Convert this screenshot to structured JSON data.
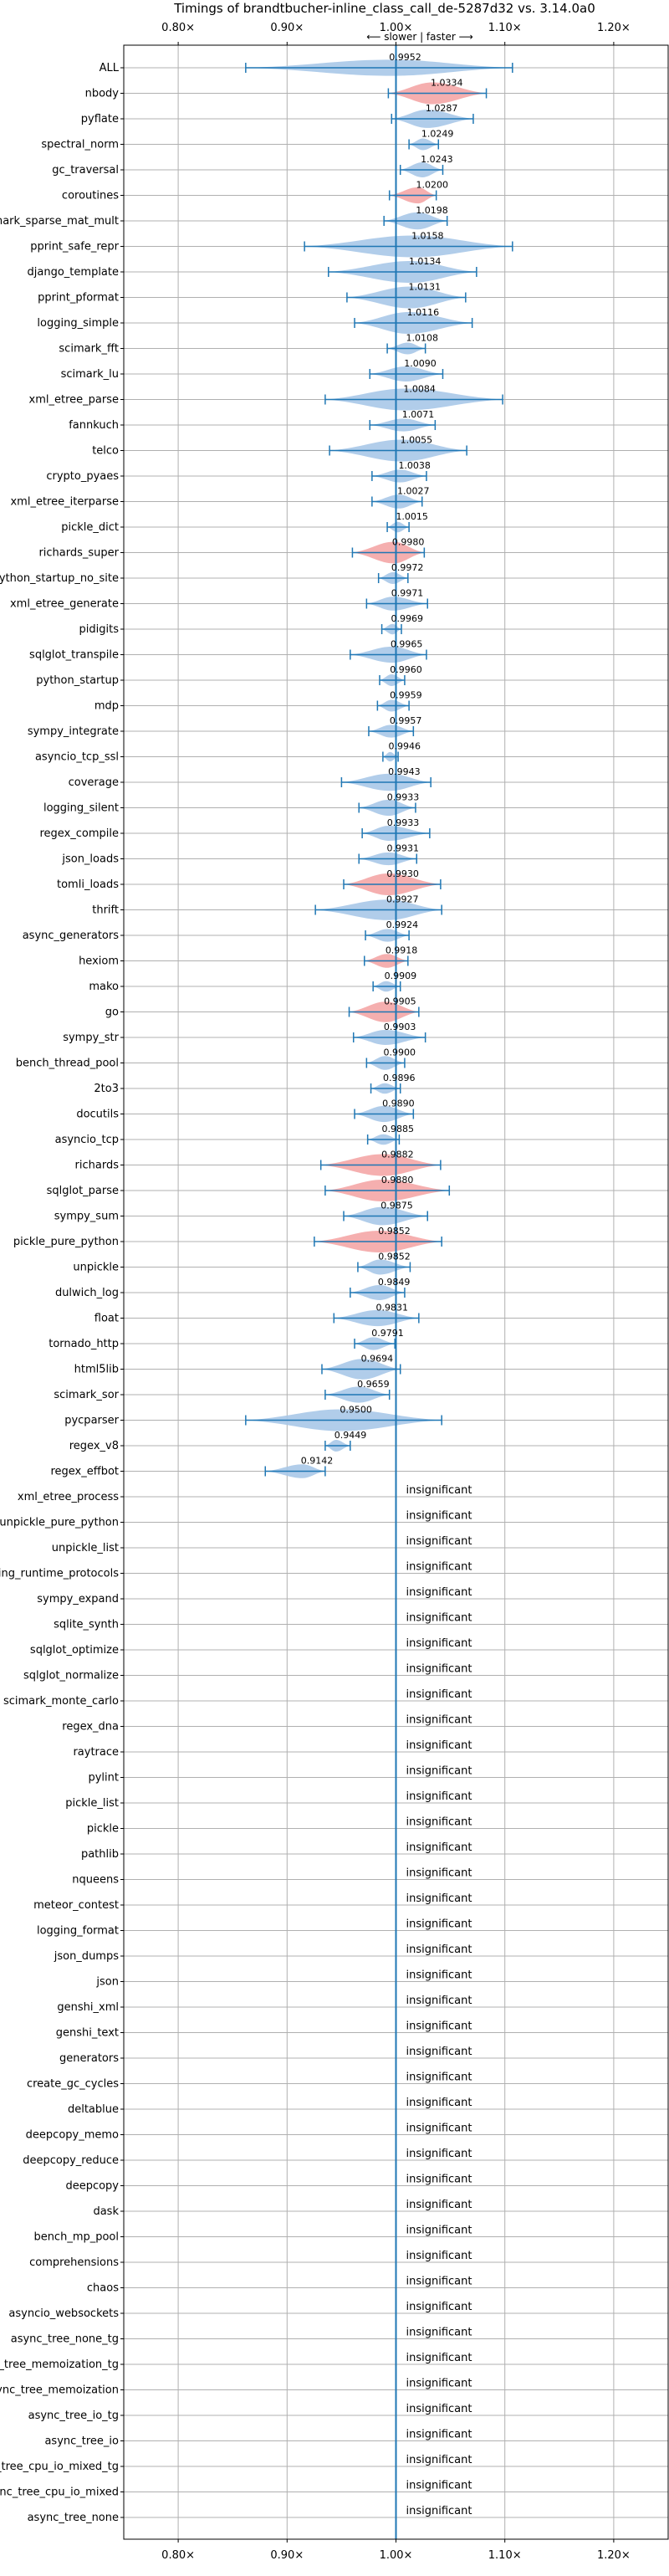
{
  "chart_data": {
    "type": "violin",
    "title": "Timings of brandtbucher-inline_class_call_de-5287d32 vs. 3.14.0a0",
    "direction_label": "⟵ slower | faster ⟶",
    "xlim": [
      0.75,
      1.25
    ],
    "x_ticks": [
      0.8,
      0.9,
      1.0,
      1.1,
      1.2
    ],
    "x_tick_labels": [
      "0.80×",
      "0.90×",
      "1.00×",
      "1.10×",
      "1.20×"
    ],
    "reference_line": 1.0,
    "grid": true,
    "insignificant_label": "insignificant",
    "colors": {
      "faster": "#a9c8e8",
      "slower": "#f4a6a6",
      "errorbar": "#1f77b4",
      "reference": "#1f77b4",
      "grid": "#b0b0b0"
    },
    "rows": [
      {
        "name": "ALL",
        "value": 0.9952,
        "label": "0.9952",
        "lo": 0.862,
        "hi": 1.107,
        "w": 0.02,
        "color": "faster"
      },
      {
        "name": "nbody",
        "value": 1.0334,
        "label": "1.0334",
        "lo": 0.993,
        "hi": 1.083,
        "w": 0.032,
        "color": "slower"
      },
      {
        "name": "pyflate",
        "value": 1.0287,
        "label": "1.0287",
        "lo": 0.996,
        "hi": 1.071,
        "w": 0.024,
        "color": "faster"
      },
      {
        "name": "spectral_norm",
        "value": 1.0249,
        "label": "1.0249",
        "lo": 1.012,
        "hi": 1.039,
        "w": 0.012,
        "color": "faster"
      },
      {
        "name": "gc_traversal",
        "value": 1.0243,
        "label": "1.0243",
        "lo": 1.004,
        "hi": 1.043,
        "w": 0.018,
        "color": "faster"
      },
      {
        "name": "coroutines",
        "value": 1.02,
        "label": "1.0200",
        "lo": 0.994,
        "hi": 1.037,
        "w": 0.02,
        "color": "slower"
      },
      {
        "name": "scimark_sparse_mat_mult",
        "value": 1.0198,
        "label": "1.0198",
        "lo": 0.989,
        "hi": 1.047,
        "w": 0.022,
        "color": "faster"
      },
      {
        "name": "pprint_safe_repr",
        "value": 1.0158,
        "label": "1.0158",
        "lo": 0.916,
        "hi": 1.107,
        "w": 0.06,
        "color": "faster"
      },
      {
        "name": "django_template",
        "value": 1.0134,
        "label": "1.0134",
        "lo": 0.938,
        "hi": 1.074,
        "w": 0.04,
        "color": "faster"
      },
      {
        "name": "pprint_pformat",
        "value": 1.0131,
        "label": "1.0131",
        "lo": 0.955,
        "hi": 1.064,
        "w": 0.035,
        "color": "faster"
      },
      {
        "name": "logging_simple",
        "value": 1.0116,
        "label": "1.0116",
        "lo": 0.962,
        "hi": 1.07,
        "w": 0.035,
        "color": "faster"
      },
      {
        "name": "scimark_fft",
        "value": 1.0108,
        "label": "1.0108",
        "lo": 0.992,
        "hi": 1.027,
        "w": 0.012,
        "color": "faster"
      },
      {
        "name": "scimark_lu",
        "value": 1.009,
        "label": "1.0090",
        "lo": 0.976,
        "hi": 1.043,
        "w": 0.018,
        "color": "faster"
      },
      {
        "name": "xml_etree_parse",
        "value": 1.0084,
        "label": "1.0084",
        "lo": 0.935,
        "hi": 1.098,
        "w": 0.045,
        "color": "faster"
      },
      {
        "name": "fannkuch",
        "value": 1.0071,
        "label": "1.0071",
        "lo": 0.976,
        "hi": 1.036,
        "w": 0.014,
        "color": "faster"
      },
      {
        "name": "telco",
        "value": 1.0055,
        "label": "1.0055",
        "lo": 0.939,
        "hi": 1.065,
        "w": 0.055,
        "color": "faster"
      },
      {
        "name": "crypto_pyaes",
        "value": 1.0038,
        "label": "1.0038",
        "lo": 0.978,
        "hi": 1.028,
        "w": 0.014,
        "color": "faster"
      },
      {
        "name": "xml_etree_iterparse",
        "value": 1.0027,
        "label": "1.0027",
        "lo": 0.978,
        "hi": 1.024,
        "w": 0.016,
        "color": "faster"
      },
      {
        "name": "pickle_dict",
        "value": 1.0015,
        "label": "1.0015",
        "lo": 0.992,
        "hi": 1.012,
        "w": 0.01,
        "color": "faster"
      },
      {
        "name": "richards_super",
        "value": 0.998,
        "label": "0.9980",
        "lo": 0.96,
        "hi": 1.026,
        "w": 0.03,
        "color": "slower"
      },
      {
        "name": "python_startup_no_site",
        "value": 0.9972,
        "label": "0.9972",
        "lo": 0.984,
        "hi": 1.011,
        "w": 0.012,
        "color": "faster"
      },
      {
        "name": "xml_etree_generate",
        "value": 0.9971,
        "label": "0.9971",
        "lo": 0.973,
        "hi": 1.029,
        "w": 0.016,
        "color": "faster"
      },
      {
        "name": "pidigits",
        "value": 0.9969,
        "label": "0.9969",
        "lo": 0.987,
        "hi": 1.005,
        "w": 0.01,
        "color": "faster"
      },
      {
        "name": "sqlglot_transpile",
        "value": 0.9965,
        "label": "0.9965",
        "lo": 0.958,
        "hi": 1.028,
        "w": 0.02,
        "color": "faster"
      },
      {
        "name": "python_startup",
        "value": 0.996,
        "label": "0.9960",
        "lo": 0.985,
        "hi": 1.008,
        "w": 0.012,
        "color": "faster"
      },
      {
        "name": "mdp",
        "value": 0.9959,
        "label": "0.9959",
        "lo": 0.983,
        "hi": 1.012,
        "w": 0.012,
        "color": "faster"
      },
      {
        "name": "sympy_integrate",
        "value": 0.9957,
        "label": "0.9957",
        "lo": 0.975,
        "hi": 1.016,
        "w": 0.014,
        "color": "faster"
      },
      {
        "name": "asyncio_tcp_ssl",
        "value": 0.9946,
        "label": "0.9946",
        "lo": 0.988,
        "hi": 1.002,
        "w": 0.008,
        "color": "faster"
      },
      {
        "name": "coverage",
        "value": 0.9943,
        "label": "0.9943",
        "lo": 0.95,
        "hi": 1.032,
        "w": 0.022,
        "color": "faster"
      },
      {
        "name": "logging_silent",
        "value": 0.9933,
        "label": "0.9933",
        "lo": 0.966,
        "hi": 1.018,
        "w": 0.02,
        "color": "faster"
      },
      {
        "name": "regex_compile",
        "value": 0.9933,
        "label": "0.9933",
        "lo": 0.969,
        "hi": 1.031,
        "w": 0.018,
        "color": "faster"
      },
      {
        "name": "json_loads",
        "value": 0.9931,
        "label": "0.9931",
        "lo": 0.966,
        "hi": 1.019,
        "w": 0.014,
        "color": "faster"
      },
      {
        "name": "tomli_loads",
        "value": 0.993,
        "label": "0.9930",
        "lo": 0.952,
        "hi": 1.041,
        "w": 0.035,
        "color": "slower"
      },
      {
        "name": "thrift",
        "value": 0.9927,
        "label": "0.9927",
        "lo": 0.926,
        "hi": 1.042,
        "w": 0.028,
        "color": "faster"
      },
      {
        "name": "async_generators",
        "value": 0.9924,
        "label": "0.9924",
        "lo": 0.972,
        "hi": 1.012,
        "w": 0.014,
        "color": "faster"
      },
      {
        "name": "hexiom",
        "value": 0.9918,
        "label": "0.9918",
        "lo": 0.971,
        "hi": 1.011,
        "w": 0.016,
        "color": "slower"
      },
      {
        "name": "mako",
        "value": 0.9909,
        "label": "0.9909",
        "lo": 0.979,
        "hi": 1.004,
        "w": 0.01,
        "color": "faster"
      },
      {
        "name": "go",
        "value": 0.9905,
        "label": "0.9905",
        "lo": 0.957,
        "hi": 1.021,
        "w": 0.028,
        "color": "slower"
      },
      {
        "name": "sympy_str",
        "value": 0.9903,
        "label": "0.9903",
        "lo": 0.961,
        "hi": 1.027,
        "w": 0.018,
        "color": "faster"
      },
      {
        "name": "bench_thread_pool",
        "value": 0.99,
        "label": "0.9900",
        "lo": 0.973,
        "hi": 1.008,
        "w": 0.016,
        "color": "faster"
      },
      {
        "name": "2to3",
        "value": 0.9896,
        "label": "0.9896",
        "lo": 0.977,
        "hi": 1.004,
        "w": 0.01,
        "color": "faster"
      },
      {
        "name": "docutils",
        "value": 0.989,
        "label": "0.9890",
        "lo": 0.962,
        "hi": 1.016,
        "w": 0.02,
        "color": "faster"
      },
      {
        "name": "asyncio_tcp",
        "value": 0.9885,
        "label": "0.9885",
        "lo": 0.974,
        "hi": 1.003,
        "w": 0.01,
        "color": "faster"
      },
      {
        "name": "richards",
        "value": 0.9882,
        "label": "0.9882",
        "lo": 0.931,
        "hi": 1.041,
        "w": 0.034,
        "color": "slower"
      },
      {
        "name": "sqlglot_parse",
        "value": 0.988,
        "label": "0.9880",
        "lo": 0.935,
        "hi": 1.049,
        "w": 0.045,
        "color": "slower"
      },
      {
        "name": "sympy_sum",
        "value": 0.9875,
        "label": "0.9875",
        "lo": 0.952,
        "hi": 1.029,
        "w": 0.024,
        "color": "faster"
      },
      {
        "name": "pickle_pure_python",
        "value": 0.9852,
        "label": "0.9852",
        "lo": 0.925,
        "hi": 1.042,
        "w": 0.04,
        "color": "slower"
      },
      {
        "name": "unpickle",
        "value": 0.9852,
        "label": "0.9852",
        "lo": 0.965,
        "hi": 1.013,
        "w": 0.018,
        "color": "faster"
      },
      {
        "name": "dulwich_log",
        "value": 0.9849,
        "label": "0.9849",
        "lo": 0.958,
        "hi": 1.008,
        "w": 0.018,
        "color": "faster"
      },
      {
        "name": "float",
        "value": 0.9831,
        "label": "0.9831",
        "lo": 0.943,
        "hi": 1.021,
        "w": 0.02,
        "color": "faster"
      },
      {
        "name": "tornado_http",
        "value": 0.9791,
        "label": "0.9791",
        "lo": 0.962,
        "hi": 0.999,
        "w": 0.014,
        "color": "faster"
      },
      {
        "name": "html5lib",
        "value": 0.9694,
        "label": "0.9694",
        "lo": 0.932,
        "hi": 1.004,
        "w": 0.028,
        "color": "faster"
      },
      {
        "name": "scimark_sor",
        "value": 0.9659,
        "label": "0.9659",
        "lo": 0.935,
        "hi": 0.994,
        "w": 0.02,
        "color": "faster"
      },
      {
        "name": "pycparser",
        "value": 0.95,
        "label": "0.9500",
        "lo": 0.862,
        "hi": 1.042,
        "w": 0.1,
        "color": "faster"
      },
      {
        "name": "regex_v8",
        "value": 0.9449,
        "label": "0.9449",
        "lo": 0.935,
        "hi": 0.958,
        "w": 0.012,
        "color": "faster"
      },
      {
        "name": "regex_effbot",
        "value": 0.9142,
        "label": "0.9142",
        "lo": 0.88,
        "hi": 0.935,
        "w": 0.016,
        "color": "faster"
      },
      {
        "name": "xml_etree_process",
        "insignificant": true
      },
      {
        "name": "unpickle_pure_python",
        "insignificant": true
      },
      {
        "name": "unpickle_list",
        "insignificant": true
      },
      {
        "name": "typing_runtime_protocols",
        "insignificant": true
      },
      {
        "name": "sympy_expand",
        "insignificant": true
      },
      {
        "name": "sqlite_synth",
        "insignificant": true
      },
      {
        "name": "sqlglot_optimize",
        "insignificant": true
      },
      {
        "name": "sqlglot_normalize",
        "insignificant": true
      },
      {
        "name": "scimark_monte_carlo",
        "insignificant": true
      },
      {
        "name": "regex_dna",
        "insignificant": true
      },
      {
        "name": "raytrace",
        "insignificant": true
      },
      {
        "name": "pylint",
        "insignificant": true
      },
      {
        "name": "pickle_list",
        "insignificant": true
      },
      {
        "name": "pickle",
        "insignificant": true
      },
      {
        "name": "pathlib",
        "insignificant": true
      },
      {
        "name": "nqueens",
        "insignificant": true
      },
      {
        "name": "meteor_contest",
        "insignificant": true
      },
      {
        "name": "logging_format",
        "insignificant": true
      },
      {
        "name": "json_dumps",
        "insignificant": true
      },
      {
        "name": "json",
        "insignificant": true
      },
      {
        "name": "genshi_xml",
        "insignificant": true
      },
      {
        "name": "genshi_text",
        "insignificant": true
      },
      {
        "name": "generators",
        "insignificant": true
      },
      {
        "name": "create_gc_cycles",
        "insignificant": true
      },
      {
        "name": "deltablue",
        "insignificant": true
      },
      {
        "name": "deepcopy_memo",
        "insignificant": true
      },
      {
        "name": "deepcopy_reduce",
        "insignificant": true
      },
      {
        "name": "deepcopy",
        "insignificant": true
      },
      {
        "name": "dask",
        "insignificant": true
      },
      {
        "name": "bench_mp_pool",
        "insignificant": true
      },
      {
        "name": "comprehensions",
        "insignificant": true
      },
      {
        "name": "chaos",
        "insignificant": true
      },
      {
        "name": "asyncio_websockets",
        "insignificant": true
      },
      {
        "name": "async_tree_none_tg",
        "insignificant": true
      },
      {
        "name": "async_tree_memoization_tg",
        "insignificant": true
      },
      {
        "name": "async_tree_memoization",
        "insignificant": true
      },
      {
        "name": "async_tree_io_tg",
        "insignificant": true
      },
      {
        "name": "async_tree_io",
        "insignificant": true
      },
      {
        "name": "async_tree_cpu_io_mixed_tg",
        "insignificant": true
      },
      {
        "name": "async_tree_cpu_io_mixed",
        "insignificant": true
      },
      {
        "name": "async_tree_none",
        "insignificant": true
      }
    ]
  }
}
